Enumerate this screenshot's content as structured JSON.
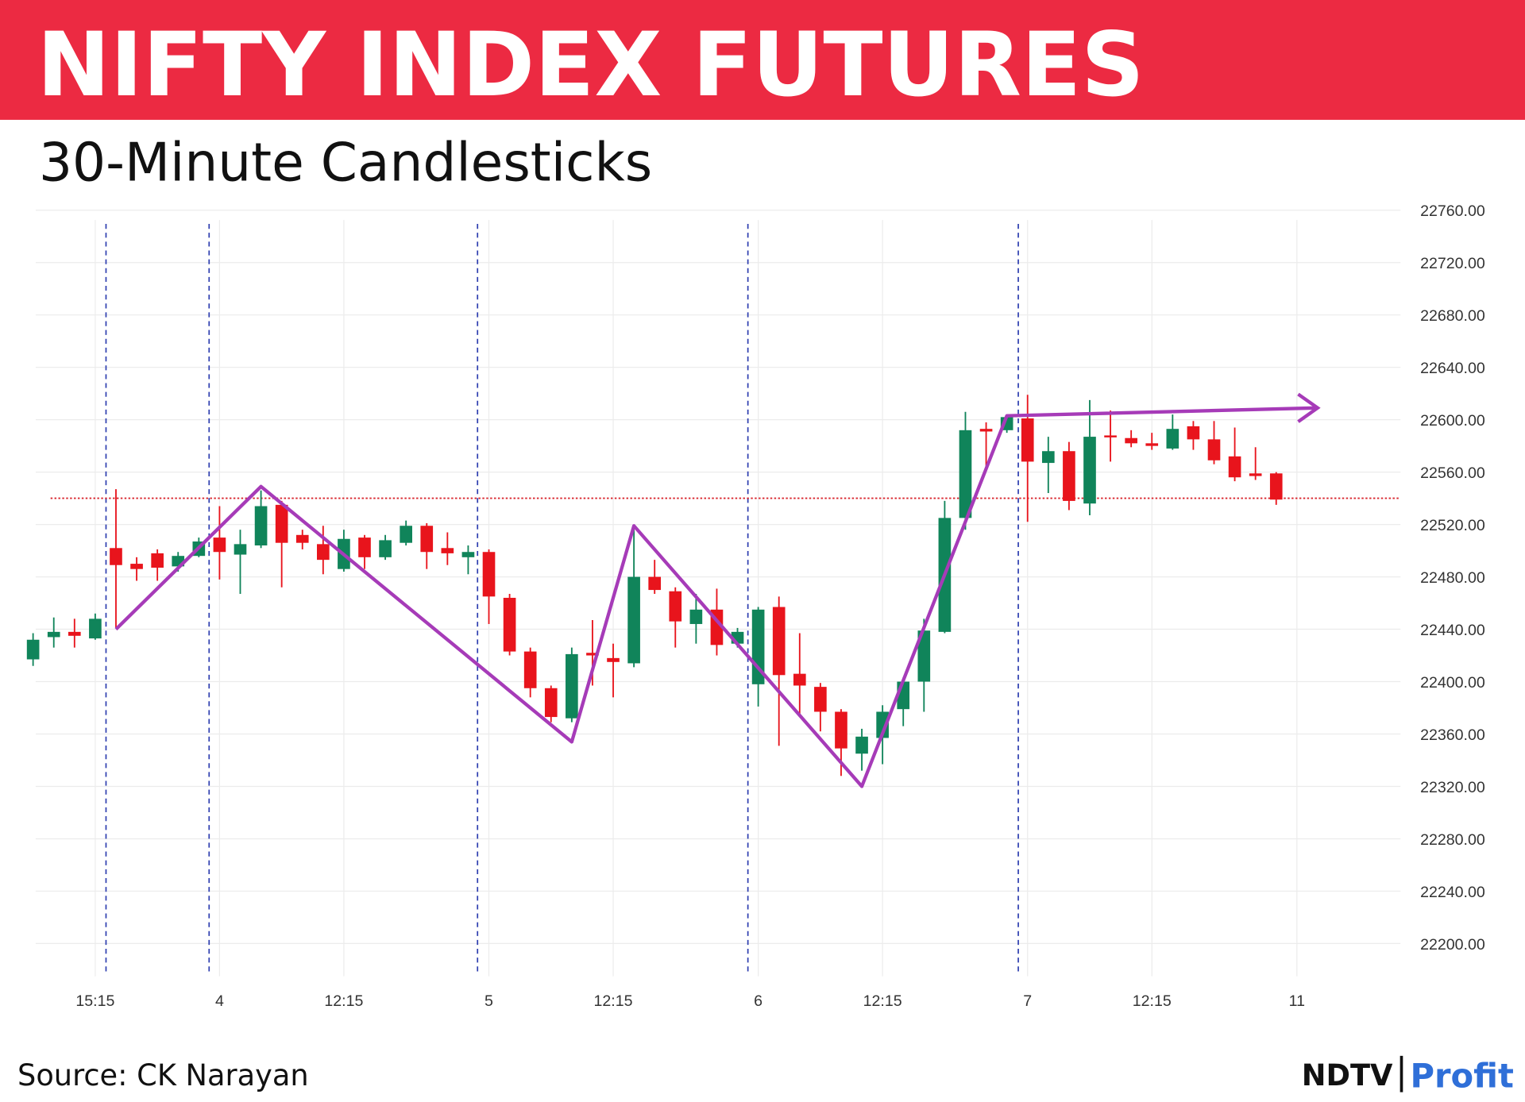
{
  "chart_data": {
    "type": "candlestick",
    "title": "NIFTY INDEX FUTURES",
    "subtitle": "30-Minute Candlesticks",
    "source": "Source: CK Narayan",
    "brand": [
      "NDTV",
      "Profit"
    ],
    "up_color": "#10845a",
    "down_color": "#e8141c",
    "open": [
      22417,
      22434,
      22438,
      22433,
      22502,
      22490,
      22498,
      22488,
      22496,
      22510,
      22497,
      22504,
      22535,
      22512,
      22505,
      22486,
      22510,
      22495,
      22506,
      22519,
      22502,
      22495,
      22499,
      22464,
      22423,
      22395,
      22372,
      22422,
      22418,
      22414,
      22480,
      22469,
      22444,
      22455,
      22429,
      22398,
      22457,
      22406,
      22396,
      22377,
      22345,
      22357,
      22379,
      22400,
      22438,
      22525,
      22593,
      22592,
      22601,
      22567,
      22576,
      22536,
      22588,
      22586,
      22582,
      22578,
      22595,
      22585,
      22572,
      22559,
      22559
    ],
    "high": [
      22437,
      22449,
      22448,
      22452,
      22547,
      22495,
      22501,
      22499,
      22510,
      22534,
      22516,
      22546,
      22538,
      22516,
      22519,
      22516,
      22512,
      22512,
      22523,
      22521,
      22514,
      22504,
      22501,
      22467,
      22426,
      22397,
      22426,
      22447,
      22429,
      22519,
      22493,
      22472,
      22467,
      22471,
      22441,
      22457,
      22465,
      22437,
      22399,
      22379,
      22364,
      22382,
      22403,
      22448,
      22538,
      22606,
      22598,
      22604,
      22619,
      22587,
      22583,
      22615,
      22607,
      22592,
      22590,
      22604,
      22599,
      22599,
      22594,
      22579,
      22560
    ],
    "low": [
      22412,
      22426,
      22426,
      22432,
      22441,
      22477,
      22477,
      22484,
      22495,
      22478,
      22467,
      22502,
      22472,
      22501,
      22482,
      22484,
      22486,
      22493,
      22504,
      22486,
      22489,
      22482,
      22444,
      22420,
      22388,
      22369,
      22369,
      22397,
      22388,
      22411,
      22467,
      22426,
      22429,
      22420,
      22426,
      22381,
      22351,
      22373,
      22362,
      22328,
      22332,
      22337,
      22366,
      22377,
      22437,
      22516,
      22564,
      22590,
      22522,
      22544,
      22531,
      22527,
      22568,
      22579,
      22577,
      22577,
      22577,
      22566,
      22553,
      22554,
      22535
    ],
    "close": [
      22432,
      22438,
      22435,
      22448,
      22489,
      22486,
      22487,
      22496,
      22507,
      22499,
      22505,
      22534,
      22506,
      22506,
      22493,
      22509,
      22495,
      22508,
      22519,
      22499,
      22498,
      22499,
      22465,
      22423,
      22395,
      22373,
      22421,
      22420,
      22415,
      22480,
      22470,
      22446,
      22455,
      22428,
      22438,
      22455,
      22405,
      22397,
      22377,
      22349,
      22358,
      22377,
      22400,
      22439,
      22525,
      22592,
      22591,
      22602,
      22568,
      22576,
      22538,
      22587,
      22587,
      22582,
      22580,
      22593,
      22585,
      22569,
      22556,
      22557,
      22539
    ],
    "xlim": [
      -1,
      66
    ],
    "xticks": [
      {
        "value": 3,
        "label": "15:15"
      },
      {
        "value": 9,
        "label": "4"
      },
      {
        "value": 15,
        "label": "12:15"
      },
      {
        "value": 22,
        "label": "5"
      },
      {
        "value": 28,
        "label": "12:15"
      },
      {
        "value": 35,
        "label": "6"
      },
      {
        "value": 41,
        "label": "12:15"
      },
      {
        "value": 48,
        "label": "7"
      },
      {
        "value": 54,
        "label": "12:15"
      },
      {
        "value": 61,
        "label": "11"
      }
    ],
    "ylim": [
      22175,
      22775
    ],
    "yticks": [
      {
        "value": 22200,
        "label": "22200.00"
      },
      {
        "value": 22240,
        "label": "22240.00"
      },
      {
        "value": 22280,
        "label": "22280.00"
      },
      {
        "value": 22320,
        "label": "22320.00"
      },
      {
        "value": 22360,
        "label": "22360.00"
      },
      {
        "value": 22400,
        "label": "22400.00"
      },
      {
        "value": 22440,
        "label": "22440.00"
      },
      {
        "value": 22480,
        "label": "22480.00"
      },
      {
        "value": 22520,
        "label": "22520.00"
      },
      {
        "value": 22560,
        "label": "22560.00"
      },
      {
        "value": 22600,
        "label": "22600.00"
      },
      {
        "value": 22640,
        "label": "22640.00"
      },
      {
        "value": 22680,
        "label": "22680.00"
      },
      {
        "value": 22720,
        "label": "22720.00"
      },
      {
        "value": 22760,
        "label": "22760.00"
      }
    ],
    "grid": true,
    "ref_line": {
      "value": 22540,
      "color": "#d9262e"
    },
    "zigzag": {
      "x": [
        4,
        11,
        26,
        29,
        40,
        47,
        62
      ],
      "values": [
        22440,
        22549,
        22354,
        22519,
        22320,
        22603,
        22609
      ],
      "color": "#a63bb8"
    }
  }
}
